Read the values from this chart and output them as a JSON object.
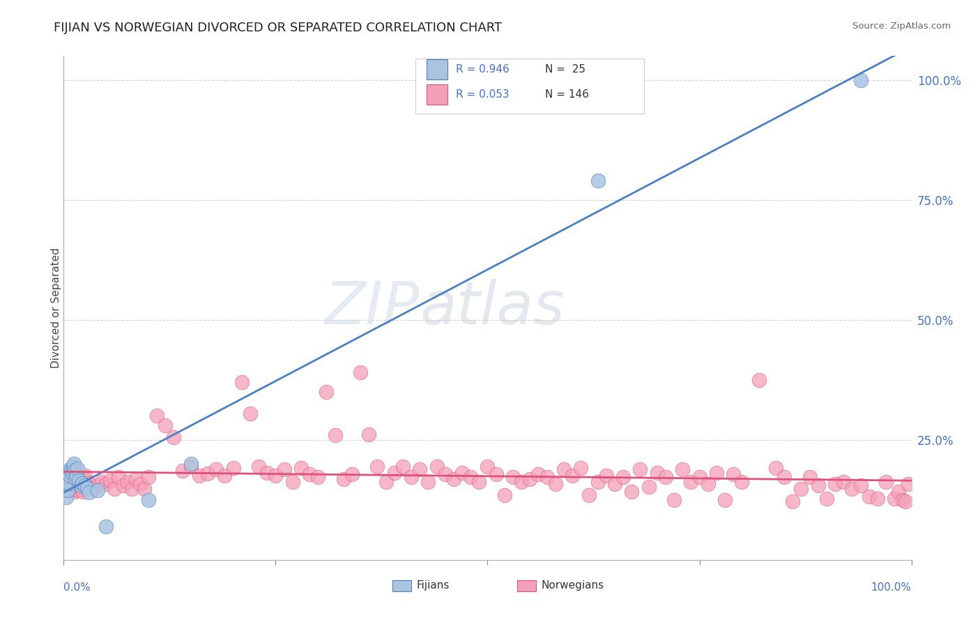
{
  "title": "FIJIAN VS NORWEGIAN DIVORCED OR SEPARATED CORRELATION CHART",
  "source": "Source: ZipAtlas.com",
  "ylabel": "Divorced or Separated",
  "fijian_R": "0.946",
  "fijian_N": "25",
  "norwegian_R": "0.053",
  "norwegian_N": "146",
  "fijian_color": "#aac4e0",
  "fijian_line_color": "#4a7fc4",
  "norwegian_color": "#f4a0b8",
  "norwegian_line_color": "#e0507a",
  "watermark_zip": "ZIP",
  "watermark_atlas": "atlas",
  "ytick_labels": [
    "",
    "25.0%",
    "50.0%",
    "75.0%",
    "100.0%"
  ],
  "ytick_vals": [
    0.0,
    0.25,
    0.5,
    0.75,
    1.0
  ],
  "fijian_x": [
    0.003,
    0.005,
    0.006,
    0.007,
    0.008,
    0.009,
    0.01,
    0.011,
    0.012,
    0.013,
    0.014,
    0.015,
    0.016,
    0.018,
    0.02,
    0.022,
    0.025,
    0.028,
    0.03,
    0.04,
    0.05,
    0.1,
    0.15,
    0.63,
    0.94
  ],
  "fijian_y": [
    0.13,
    0.145,
    0.16,
    0.175,
    0.19,
    0.185,
    0.18,
    0.195,
    0.2,
    0.185,
    0.17,
    0.175,
    0.19,
    0.165,
    0.155,
    0.16,
    0.155,
    0.15,
    0.14,
    0.145,
    0.07,
    0.125,
    0.2,
    0.79,
    1.0
  ],
  "norwegian_x": [
    0.003,
    0.005,
    0.007,
    0.008,
    0.009,
    0.01,
    0.011,
    0.012,
    0.013,
    0.014,
    0.015,
    0.016,
    0.017,
    0.018,
    0.019,
    0.02,
    0.021,
    0.022,
    0.023,
    0.024,
    0.025,
    0.03,
    0.035,
    0.04,
    0.045,
    0.05,
    0.055,
    0.06,
    0.065,
    0.07,
    0.075,
    0.08,
    0.085,
    0.09,
    0.095,
    0.1,
    0.11,
    0.12,
    0.13,
    0.14,
    0.15,
    0.16,
    0.17,
    0.18,
    0.19,
    0.2,
    0.21,
    0.22,
    0.23,
    0.24,
    0.25,
    0.26,
    0.27,
    0.28,
    0.29,
    0.3,
    0.31,
    0.32,
    0.33,
    0.34,
    0.35,
    0.36,
    0.37,
    0.38,
    0.39,
    0.4,
    0.41,
    0.42,
    0.43,
    0.44,
    0.45,
    0.46,
    0.47,
    0.48,
    0.49,
    0.5,
    0.51,
    0.52,
    0.53,
    0.54,
    0.55,
    0.56,
    0.57,
    0.58,
    0.59,
    0.6,
    0.61,
    0.62,
    0.63,
    0.64,
    0.65,
    0.66,
    0.67,
    0.68,
    0.69,
    0.7,
    0.71,
    0.72,
    0.73,
    0.74,
    0.75,
    0.76,
    0.77,
    0.78,
    0.79,
    0.8,
    0.82,
    0.84,
    0.85,
    0.86,
    0.87,
    0.88,
    0.89,
    0.9,
    0.91,
    0.92,
    0.93,
    0.94,
    0.95,
    0.96,
    0.97,
    0.98,
    0.985,
    0.99,
    0.993,
    0.996
  ],
  "norwegian_y": [
    0.155,
    0.148,
    0.162,
    0.145,
    0.17,
    0.158,
    0.148,
    0.165,
    0.142,
    0.158,
    0.152,
    0.168,
    0.145,
    0.162,
    0.155,
    0.148,
    0.165,
    0.158,
    0.142,
    0.17,
    0.175,
    0.16,
    0.148,
    0.155,
    0.162,
    0.158,
    0.165,
    0.148,
    0.172,
    0.155,
    0.162,
    0.148,
    0.168,
    0.158,
    0.148,
    0.172,
    0.3,
    0.28,
    0.255,
    0.185,
    0.195,
    0.175,
    0.18,
    0.188,
    0.175,
    0.192,
    0.37,
    0.305,
    0.195,
    0.182,
    0.175,
    0.188,
    0.162,
    0.192,
    0.178,
    0.172,
    0.35,
    0.26,
    0.168,
    0.178,
    0.39,
    0.262,
    0.195,
    0.162,
    0.182,
    0.195,
    0.172,
    0.188,
    0.162,
    0.195,
    0.178,
    0.168,
    0.182,
    0.172,
    0.162,
    0.195,
    0.178,
    0.135,
    0.172,
    0.162,
    0.168,
    0.178,
    0.172,
    0.158,
    0.188,
    0.175,
    0.192,
    0.135,
    0.162,
    0.175,
    0.158,
    0.172,
    0.142,
    0.188,
    0.152,
    0.182,
    0.172,
    0.125,
    0.188,
    0.162,
    0.172,
    0.158,
    0.182,
    0.125,
    0.178,
    0.162,
    0.375,
    0.192,
    0.172,
    0.122,
    0.148,
    0.172,
    0.155,
    0.128,
    0.158,
    0.162,
    0.148,
    0.155,
    0.132,
    0.128,
    0.162,
    0.128,
    0.142,
    0.125,
    0.122,
    0.158
  ]
}
